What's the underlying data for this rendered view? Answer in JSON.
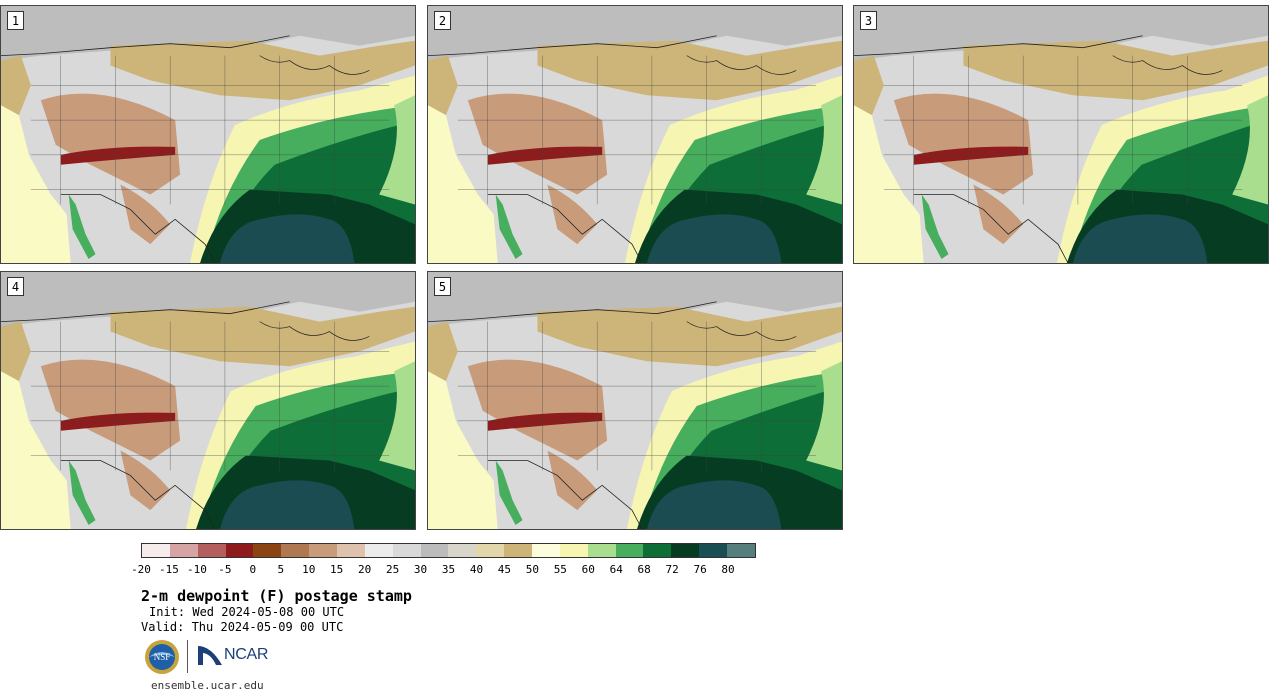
{
  "panels": [
    {
      "label": "1"
    },
    {
      "label": "2"
    },
    {
      "label": "3"
    },
    {
      "label": "4"
    },
    {
      "label": "5"
    }
  ],
  "colorbar": {
    "colors": [
      "#f6ecec",
      "#d6a4a4",
      "#b45e5e",
      "#8e1c1c",
      "#8b4513",
      "#b07850",
      "#c89b7b",
      "#dfc2ad",
      "#ececec",
      "#d9d9d9",
      "#bcbcbc",
      "#d8d5cb",
      "#e2d6aa",
      "#cdb478",
      "#fdfcdc",
      "#f6f5b2",
      "#a9de8f",
      "#46ae5c",
      "#0e6e37",
      "#063d22",
      "#194e52",
      "#557e7c"
    ],
    "ticks": [
      "-20",
      "-15",
      "-10",
      "-5",
      "0",
      "5",
      "10",
      "15",
      "20",
      "25",
      "30",
      "35",
      "40",
      "45",
      "50",
      "55",
      "60",
      "64",
      "68",
      "72",
      "76",
      "80"
    ]
  },
  "map_colors": {
    "ocean_west": "#fafac4",
    "ocean_gulf": "#1a4c52",
    "canada_cold": "#bdbdbd",
    "plains_tan": "#cdb478",
    "west_gray": "#d9d9d9",
    "desert_brown": "#c89b7b",
    "dry_core": "#8e1c1c",
    "humid_green": "#46ae5c",
    "moist_green": "#0e6e37",
    "very_moist": "#063d22",
    "transition_yellow": "#f6f5b2",
    "light_green": "#a9de8f"
  },
  "title": "2-m dewpoint (F) postage stamp",
  "init": "Init: Wed 2024-05-08 00 UTC",
  "valid": "Valid: Thu 2024-05-09 00 UTC",
  "logos": {
    "nsf": "NSF",
    "ncar": "NCAR"
  },
  "site_url": "ensemble.ucar.edu"
}
